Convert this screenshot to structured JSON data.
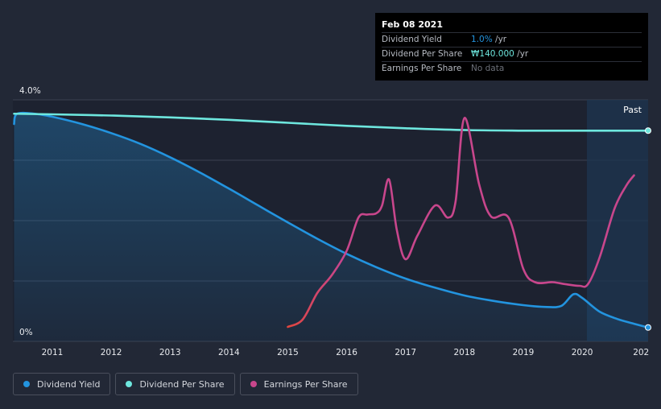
{
  "tooltip": {
    "date": "Feb 08 2021",
    "rows": [
      {
        "name": "Dividend Yield",
        "value": "1.0%",
        "unit": " /yr",
        "color": "#2394df"
      },
      {
        "name": "Dividend Per Share",
        "value": "₩140.000",
        "unit": " /yr",
        "color": "#6ee7de"
      },
      {
        "name": "Earnings Per Share",
        "value": "No data",
        "unit": "",
        "color": "#6c7079"
      }
    ]
  },
  "past_label": "Past",
  "legend": [
    {
      "label": "Dividend Yield",
      "color": "#2394df"
    },
    {
      "label": "Dividend Per Share",
      "color": "#6ee7de"
    },
    {
      "label": "Earnings Per Share",
      "color": "#c8468c"
    }
  ],
  "chart_data": {
    "type": "line",
    "x_ticks": [
      "2011",
      "2012",
      "2013",
      "2014",
      "2015",
      "2016",
      "2017",
      "2018",
      "2019",
      "2020",
      "202"
    ],
    "y_ticks": [
      "4.0%",
      "0%"
    ],
    "ylim": [
      0,
      4.0
    ],
    "xlim": [
      2010.33,
      2021.12
    ],
    "past_region_start": 2020.08,
    "grid": true,
    "series": [
      {
        "name": "Dividend Yield",
        "color": "#2394df",
        "area": true,
        "points": [
          [
            2010.35,
            3.6
          ],
          [
            2010.4,
            3.77
          ],
          [
            2010.7,
            3.77
          ],
          [
            2011.0,
            3.72
          ],
          [
            2011.5,
            3.6
          ],
          [
            2012.0,
            3.45
          ],
          [
            2012.5,
            3.27
          ],
          [
            2013.0,
            3.05
          ],
          [
            2013.5,
            2.8
          ],
          [
            2014.0,
            2.53
          ],
          [
            2014.5,
            2.25
          ],
          [
            2015.0,
            1.97
          ],
          [
            2015.5,
            1.7
          ],
          [
            2016.0,
            1.45
          ],
          [
            2016.5,
            1.23
          ],
          [
            2017.0,
            1.04
          ],
          [
            2017.5,
            0.89
          ],
          [
            2018.0,
            0.76
          ],
          [
            2018.5,
            0.67
          ],
          [
            2019.0,
            0.6
          ],
          [
            2019.4,
            0.57
          ],
          [
            2019.65,
            0.59
          ],
          [
            2019.85,
            0.78
          ],
          [
            2020.0,
            0.72
          ],
          [
            2020.3,
            0.49
          ],
          [
            2020.6,
            0.37
          ],
          [
            2020.85,
            0.3
          ],
          [
            2021.12,
            0.23
          ]
        ]
      },
      {
        "name": "Dividend Per Share",
        "color": "#6ee7de",
        "area": false,
        "points": [
          [
            2010.35,
            3.77
          ],
          [
            2011.0,
            3.76
          ],
          [
            2012.0,
            3.74
          ],
          [
            2013.0,
            3.71
          ],
          [
            2014.0,
            3.67
          ],
          [
            2015.0,
            3.62
          ],
          [
            2016.0,
            3.57
          ],
          [
            2017.0,
            3.53
          ],
          [
            2018.0,
            3.5
          ],
          [
            2019.0,
            3.49
          ],
          [
            2020.0,
            3.49
          ],
          [
            2021.12,
            3.49
          ]
        ]
      },
      {
        "name": "Earnings Per Share",
        "color": "#c8468c",
        "area": false,
        "points": [
          [
            2015.0,
            0.24
          ],
          [
            2015.25,
            0.36
          ],
          [
            2015.5,
            0.8
          ],
          [
            2015.75,
            1.1
          ],
          [
            2016.0,
            1.5
          ],
          [
            2016.2,
            2.05
          ],
          [
            2016.35,
            2.1
          ],
          [
            2016.5,
            2.12
          ],
          [
            2016.6,
            2.25
          ],
          [
            2016.72,
            2.68
          ],
          [
            2016.85,
            1.85
          ],
          [
            2017.0,
            1.36
          ],
          [
            2017.2,
            1.75
          ],
          [
            2017.5,
            2.25
          ],
          [
            2017.72,
            2.05
          ],
          [
            2017.85,
            2.32
          ],
          [
            2018.0,
            3.7
          ],
          [
            2018.25,
            2.6
          ],
          [
            2018.45,
            2.07
          ],
          [
            2018.75,
            2.05
          ],
          [
            2019.0,
            1.2
          ],
          [
            2019.2,
            0.98
          ],
          [
            2019.5,
            0.98
          ],
          [
            2019.7,
            0.95
          ],
          [
            2019.95,
            0.92
          ],
          [
            2020.1,
            0.95
          ],
          [
            2020.3,
            1.4
          ],
          [
            2020.55,
            2.2
          ],
          [
            2020.75,
            2.58
          ],
          [
            2020.88,
            2.75
          ]
        ]
      }
    ]
  }
}
